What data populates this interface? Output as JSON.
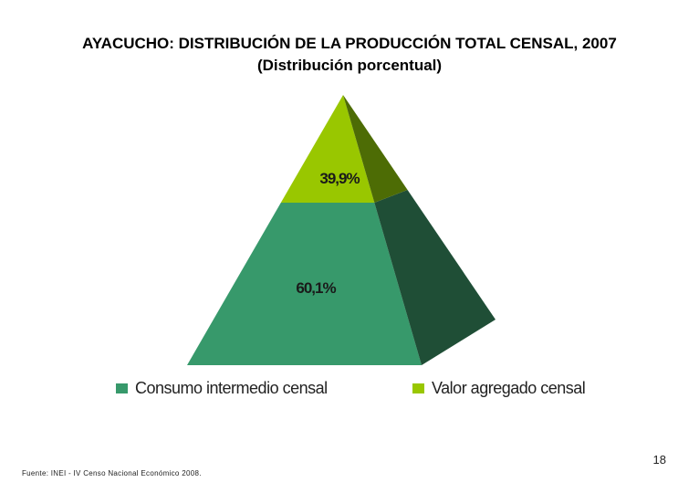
{
  "title": "AYACUCHO: DISTRIBUCIÓN DE LA PRODUCCIÓN TOTAL CENSAL, 2007",
  "subtitle": "(Distribución porcentual)",
  "chart_data": {
    "type": "pyramid",
    "title": "AYACUCHO: DISTRIBUCIÓN DE LA PRODUCCIÓN TOTAL CENSAL, 2007",
    "subtitle": "(Distribución porcentual)",
    "categories": [
      "Consumo intermedio censal",
      "Valor agregado censal"
    ],
    "values": [
      60.1,
      39.9
    ],
    "labels": [
      "60,1%",
      "39,9%"
    ],
    "unit": "%",
    "colors": {
      "Consumo intermedio censal": "#37996b",
      "Valor agregado censal": "#99c700"
    },
    "legend_position": "bottom"
  },
  "colors": {
    "bottom_front": "#37996b",
    "bottom_side": "#1f4e36",
    "top_front": "#99c700",
    "top_side": "#4d6c05"
  },
  "legend": [
    {
      "label": "Consumo intermedio censal",
      "color": "#37996b"
    },
    {
      "label": "Valor agregado censal",
      "color": "#99c700"
    }
  ],
  "page_number": "18",
  "source": "Fuente: INEI - IV Censo Nacional Económico 2008."
}
